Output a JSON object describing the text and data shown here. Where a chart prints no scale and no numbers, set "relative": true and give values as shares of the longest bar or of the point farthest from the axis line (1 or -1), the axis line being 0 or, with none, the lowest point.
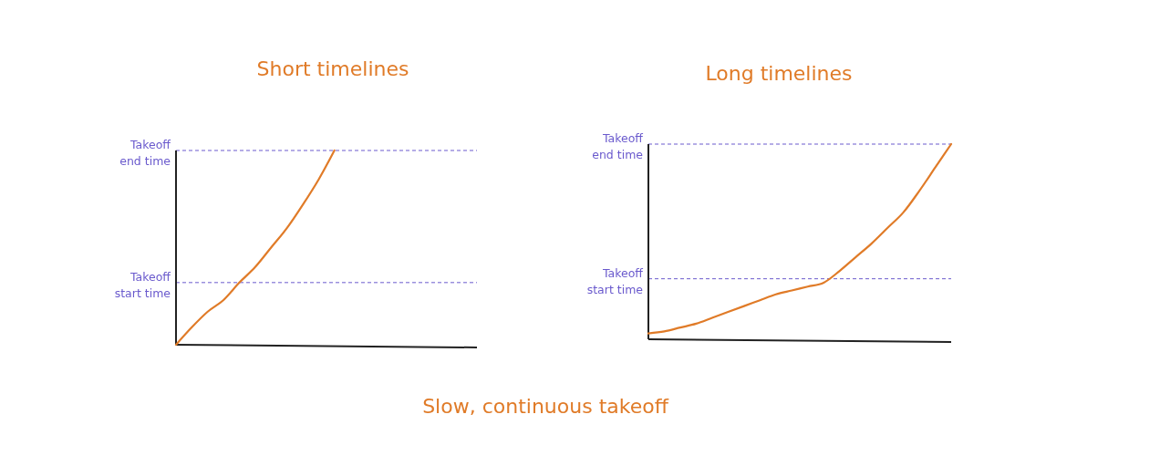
{
  "chart_data": [
    {
      "type": "line",
      "title": "Short timelines",
      "relative": true,
      "categories": [
        null,
        null,
        null,
        null,
        null,
        null,
        null,
        null,
        null,
        null,
        null,
        null,
        null,
        null,
        null,
        null,
        null,
        null,
        null,
        null
      ],
      "series": [
        {
          "color": "#e07b28",
          "values": [
            0,
            0.09,
            0.17,
            0.23,
            0.32,
            0.4,
            0.5,
            0.6,
            0.72,
            0.85,
            1,
            null,
            null,
            null,
            null,
            null,
            null,
            null,
            null,
            null
          ]
        }
      ],
      "ref_lines": [
        {
          "axis": "y",
          "value": 1,
          "label": "Takeoff end time",
          "color": "#6a5acd",
          "line_style": "dashed"
        },
        {
          "axis": "y",
          "value": 0.32,
          "label": "Takeoff start time",
          "color": "#6a5acd",
          "line_style": "dashed"
        }
      ]
    },
    {
      "type": "line",
      "title": "Long timelines",
      "relative": true,
      "categories": [
        null,
        null,
        null,
        null,
        null,
        null,
        null,
        null,
        null,
        null,
        null,
        null,
        null,
        null,
        null,
        null,
        null,
        null,
        null,
        null
      ],
      "series": [
        {
          "color": "#e07b28",
          "values": [
            0.03,
            0.04,
            0.06,
            0.08,
            0.11,
            0.14,
            0.17,
            0.2,
            0.23,
            0.25,
            0.27,
            0.29,
            0.35,
            0.42,
            0.49,
            0.57,
            0.65,
            0.76,
            0.88,
            1
          ]
        }
      ],
      "ref_lines": [
        {
          "axis": "y",
          "value": 1,
          "label": "Takeoff end time",
          "color": "#6a5acd",
          "line_style": "dashed"
        },
        {
          "axis": "y",
          "value": 0.31,
          "label": "Takeoff start time",
          "color": "#6a5acd",
          "line_style": "dashed"
        }
      ],
      "annotations": [
        "Slow, continuous takeoff"
      ]
    }
  ]
}
